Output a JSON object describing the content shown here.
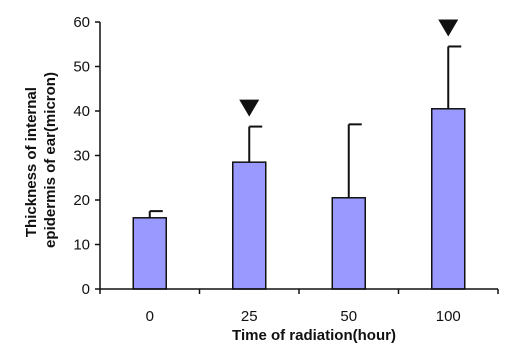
{
  "chart_data": {
    "type": "bar",
    "title": "",
    "xlabel": "Time of radiation(hour)",
    "ylabel_lines": [
      "Thickness of internal",
      "epidermis of ear(micron)"
    ],
    "categories": [
      "0",
      "25",
      "50",
      "100"
    ],
    "values": [
      16,
      28.5,
      20.5,
      40.5
    ],
    "error_upper": [
      17.5,
      36.5,
      37,
      54.5
    ],
    "significant": [
      false,
      true,
      false,
      true
    ],
    "ylim": [
      0,
      60
    ],
    "yticks": [
      0,
      10,
      20,
      30,
      40,
      50,
      60
    ],
    "ytick_labels": [
      "0",
      "10",
      "20",
      "30",
      "40",
      "50",
      "60"
    ],
    "grid": false,
    "legend": "none",
    "bar_color": "#9999ff",
    "edge_color": "#111111"
  }
}
